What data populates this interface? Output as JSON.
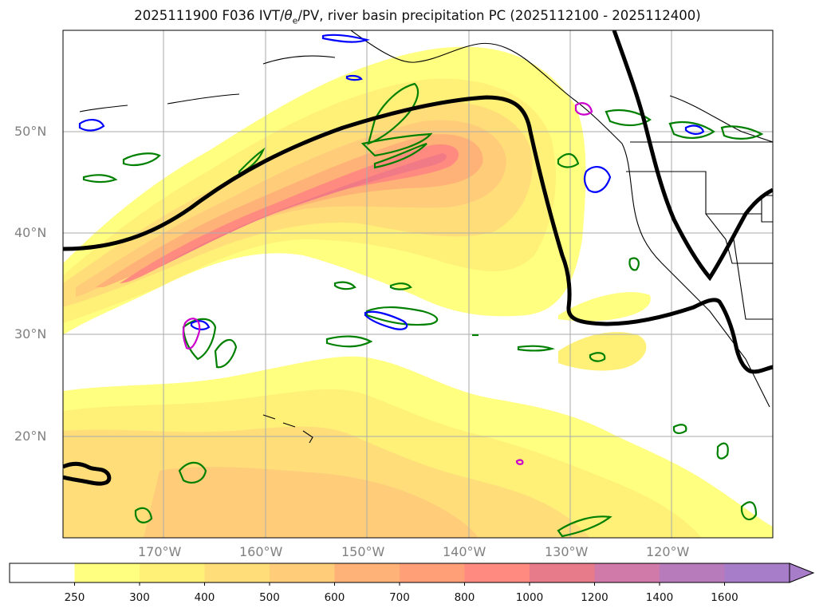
{
  "title": "2025111900 F036 IVT/θe/PV, river basin precipitation PC (2025112100 - 2025112400)",
  "title_parts": {
    "prefix": "2025111900 F036 IVT/",
    "theta": "θ",
    "theta_sub": "e",
    "suffix": "/PV, river basin precipitation PC (2025112100 - 2025112400)"
  },
  "map": {
    "lat_labels": [
      "50°N",
      "40°N",
      "30°N",
      "20°N"
    ],
    "lat_values": [
      50,
      40,
      30,
      20
    ],
    "lon_labels": [
      "170°W",
      "160°W",
      "150°W",
      "140°W",
      "130°W",
      "120°W"
    ],
    "lon_values": [
      -170,
      -160,
      -150,
      -140,
      -130,
      -120
    ],
    "lon_range": [
      -180,
      -110
    ],
    "lat_range": [
      10,
      60
    ],
    "contour_colors": {
      "pv": "#000000",
      "theta_e": "#008000",
      "blue": "#0000ff",
      "magenta": "#cc00cc",
      "coastline": "#000000"
    }
  },
  "colorbar": {
    "levels": [
      "250",
      "300",
      "400",
      "500",
      "600",
      "700",
      "800",
      "1000",
      "1200",
      "1400",
      "1600"
    ],
    "colors": [
      "#ffffff",
      "#ffff80",
      "#fff078",
      "#ffde7a",
      "#ffcc7a",
      "#ffb278",
      "#ff9f78",
      "#ff8a80",
      "#e87b8a",
      "#cf7aa8",
      "#b77bbc",
      "#a77cc8"
    ]
  }
}
